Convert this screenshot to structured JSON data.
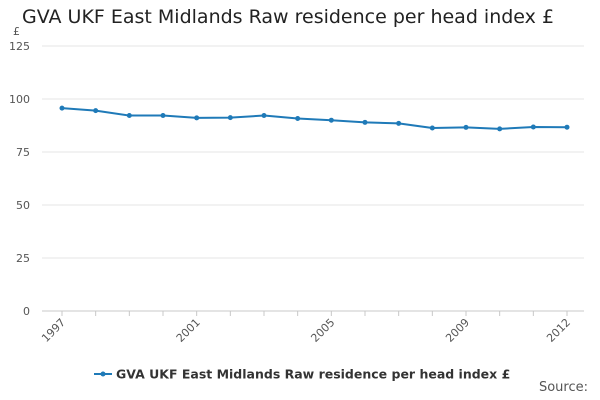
{
  "chart_data": {
    "type": "line",
    "title": "GVA UKF East Midlands Raw residence per head index £",
    "ylabel": "£",
    "xlabel": "",
    "x": [
      1997,
      1998,
      1999,
      2000,
      2001,
      2002,
      2003,
      2004,
      2005,
      2006,
      2007,
      2008,
      2009,
      2010,
      2011,
      2012
    ],
    "xticks": [
      "1997",
      "2001",
      "2005",
      "2009",
      "2012"
    ],
    "ylim": [
      0,
      125
    ],
    "yticks": [
      "0",
      "25",
      "50",
      "75",
      "100",
      "125"
    ],
    "grid": true,
    "legend_position": "bottom",
    "series": [
      {
        "name": "GVA UKF East Midlands Raw residence per head index £",
        "color": "#1f7ab8",
        "values": [
          95.7,
          94.5,
          92.2,
          92.2,
          91.1,
          91.2,
          92.2,
          90.8,
          90.0,
          89.0,
          88.5,
          86.3,
          86.6,
          85.9,
          86.8,
          86.7
        ]
      }
    ]
  },
  "source_label": "Source:",
  "colors": {
    "grid": "#e6e6e6",
    "axis_text": "#555555",
    "title": "#222222"
  }
}
